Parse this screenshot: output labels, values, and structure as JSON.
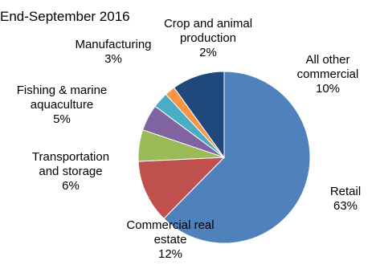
{
  "chart_data": {
    "type": "pie",
    "title": "End-September 2016",
    "start_angle_deg": 0,
    "direction": "clockwise",
    "slices": [
      {
        "label_lines": [
          "Retail"
        ],
        "value": 63,
        "value_label": "63%",
        "color": "#4f81bd"
      },
      {
        "label_lines": [
          "Commercial real",
          "estate"
        ],
        "value": 12,
        "value_label": "12%",
        "color": "#c0504d"
      },
      {
        "label_lines": [
          "Transportation",
          "and storage"
        ],
        "value": 6,
        "value_label": "6%",
        "color": "#9bbb59"
      },
      {
        "label_lines": [
          "Fishing & marine",
          "aquaculture"
        ],
        "value": 5,
        "value_label": "5%",
        "color": "#8064a2"
      },
      {
        "label_lines": [
          "Manufacturing"
        ],
        "value": 3,
        "value_label": "3%",
        "color": "#4bacc6"
      },
      {
        "label_lines": [
          "Crop and animal",
          "production"
        ],
        "value": 2,
        "value_label": "2%",
        "color": "#f79646"
      },
      {
        "label_lines": [
          "All other",
          "commercial"
        ],
        "value": 10,
        "value_label": "10%",
        "color": "#1f497d"
      }
    ]
  }
}
